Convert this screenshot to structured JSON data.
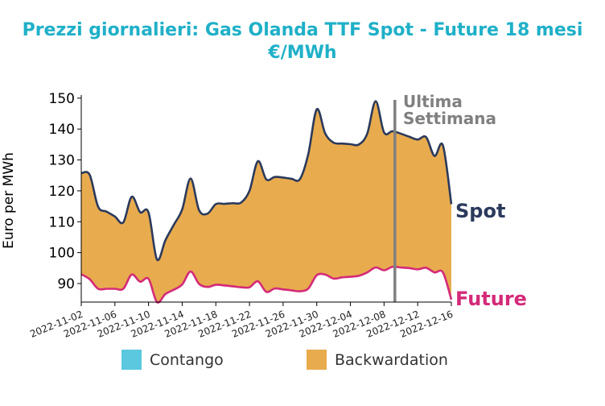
{
  "title_line1": "Prezzi giornalieri: Gas Olanda TTF Spot - Future 18 mesi",
  "title_line2": "€/MWh",
  "chart_data": {
    "type": "area",
    "ylabel": "Euro per MWh",
    "xlabel": "",
    "ylim": [
      84,
      151
    ],
    "yticks": [
      90,
      100,
      110,
      120,
      130,
      140,
      150
    ],
    "xtick_labels": [
      "2022-11-02",
      "2022-11-06",
      "2022-11-10",
      "2022-11-14",
      "2022-11-18",
      "2022-11-22",
      "2022-11-26",
      "2022-11-30",
      "2022-12-04",
      "2022-12-08",
      "2022-12-12",
      "2022-12-16"
    ],
    "x": [
      "2022-11-02",
      "2022-11-03",
      "2022-11-04",
      "2022-11-05",
      "2022-11-06",
      "2022-11-07",
      "2022-11-08",
      "2022-11-09",
      "2022-11-10",
      "2022-11-11",
      "2022-11-12",
      "2022-11-13",
      "2022-11-14",
      "2022-11-15",
      "2022-11-16",
      "2022-11-17",
      "2022-11-18",
      "2022-11-19",
      "2022-11-20",
      "2022-11-21",
      "2022-11-22",
      "2022-11-23",
      "2022-11-24",
      "2022-11-25",
      "2022-11-26",
      "2022-11-27",
      "2022-11-28",
      "2022-11-29",
      "2022-11-30",
      "2022-12-01",
      "2022-12-02",
      "2022-12-03",
      "2022-12-04",
      "2022-12-05",
      "2022-12-06",
      "2022-12-07",
      "2022-12-08",
      "2022-12-09",
      "2022-12-10",
      "2022-12-11",
      "2022-12-12",
      "2022-12-13",
      "2022-12-14",
      "2022-12-15",
      "2022-12-16"
    ],
    "series": [
      {
        "name": "Spot",
        "color": "#2b3a5c",
        "values": [
          125.7,
          125.2,
          114.9,
          113.3,
          111.7,
          109.8,
          118.1,
          113.1,
          113.0,
          97.8,
          104.0,
          109.0,
          114.0,
          124.0,
          113.8,
          112.6,
          115.7,
          115.8,
          116.0,
          116.2,
          120.0,
          129.6,
          123.7,
          124.5,
          124.3,
          123.9,
          123.8,
          132.0,
          146.4,
          138.6,
          135.6,
          135.3,
          135.1,
          135.0,
          138.5,
          149.0,
          138.9,
          139.3,
          138.5,
          137.5,
          136.6,
          137.4,
          131.3,
          134.7,
          115.7
        ]
      },
      {
        "name": "Future",
        "color": "#d42a78",
        "values": [
          93.0,
          91.4,
          88.3,
          88.3,
          88.3,
          88.3,
          92.9,
          90.6,
          91.5,
          84.0,
          86.6,
          88.0,
          89.7,
          93.9,
          89.9,
          88.9,
          89.6,
          89.4,
          89.1,
          88.8,
          88.8,
          90.7,
          87.3,
          88.4,
          88.1,
          87.8,
          87.5,
          88.4,
          92.7,
          92.9,
          91.6,
          92.0,
          92.2,
          92.5,
          93.6,
          95.2,
          94.3,
          95.4,
          95.2,
          95.0,
          94.6,
          95.1,
          93.6,
          93.6,
          84.8
        ]
      }
    ],
    "fill_between": {
      "contango_color": "#5bc8e0",
      "backwardation_color": "#e8ab4e"
    },
    "legend": {
      "placement": "bottom",
      "entries": [
        "Contango",
        "Backwardation"
      ]
    },
    "annotation": {
      "text_line1": "Ultima",
      "text_line2": "Settimana",
      "x": "2022-12-09",
      "color": "#808080"
    },
    "grid": false
  }
}
